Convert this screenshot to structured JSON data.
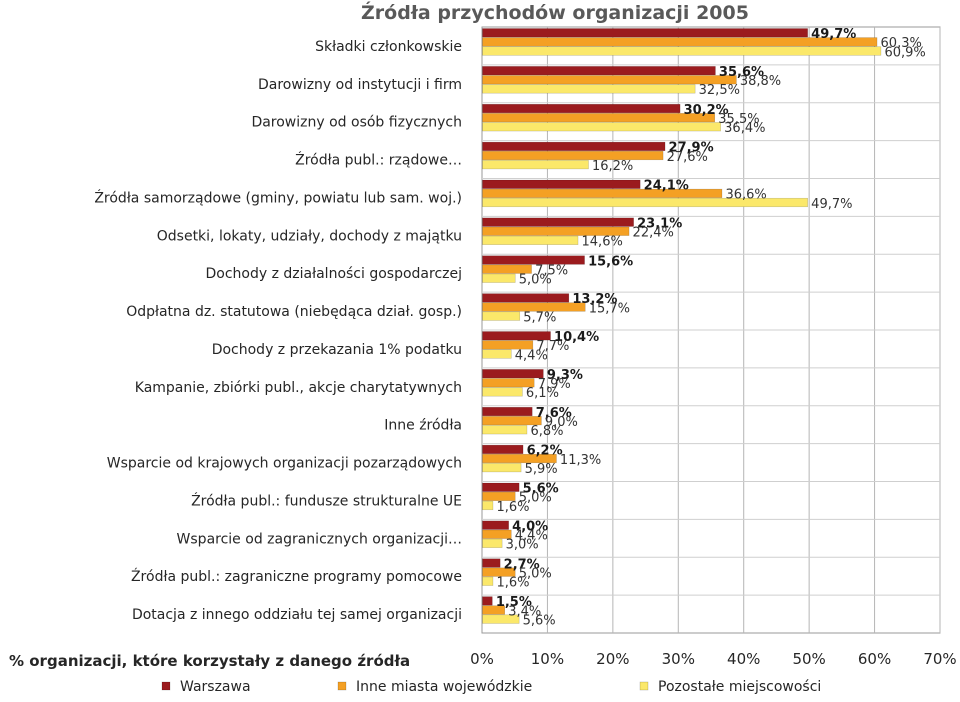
{
  "chart_data": {
    "type": "bar",
    "orientation": "horizontal",
    "title": "Źródła przychodów organizacji 2005",
    "xlabel": "% organizacji, które korzystały z danego źródła",
    "ylabel": "",
    "xlim": [
      0,
      70
    ],
    "x_ticks": [
      "0%",
      "10%",
      "20%",
      "30%",
      "40%",
      "50%",
      "60%",
      "70%"
    ],
    "grid": true,
    "legend_position": "bottom",
    "categories": [
      "Składki członkowskie",
      "Darowizny od instytucji i firm",
      "Darowizny od osób fizycznych",
      "Źródła publ.: rządowe…",
      "Źródła samorządowe (gminy, powiatu lub sam. woj.)",
      "Odsetki, lokaty, udziały, dochody z majątku",
      "Dochody z działalności gospodarczej",
      "Odpłatna dz. statutowa (niebędąca dział. gosp.)",
      "Dochody z przekazania 1% podatku",
      "Kampanie, zbiórki publ., akcje charytatywnych",
      "Inne źródła",
      "Wsparcie od krajowych organizacji pozarządowych",
      "Źródła publ.: fundusze strukturalne UE",
      "Wsparcie od zagranicznych organizacji…",
      "Źródła publ.: zagraniczne programy pomocowe",
      "Dotacja z innego oddziału tej samej organizacji"
    ],
    "series": [
      {
        "name": "Warszawa",
        "color": "#9b1b1e",
        "values": [
          49.7,
          35.6,
          30.2,
          27.9,
          24.1,
          23.1,
          15.6,
          13.2,
          10.4,
          9.3,
          7.6,
          6.2,
          5.6,
          4.0,
          2.7,
          1.5
        ],
        "labels": [
          "49,7%",
          "35,6%",
          "30,2%",
          "27,9%",
          "24,1%",
          "23,1%",
          "15,6%",
          "13,2%",
          "10,4%",
          "9,3%",
          "7,6%",
          "6,2%",
          "5,6%",
          "4,0%",
          "2,7%",
          "1,5%"
        ]
      },
      {
        "name": "Inne miasta wojewódzkie",
        "color": "#f4a024",
        "values": [
          60.3,
          38.8,
          35.5,
          27.6,
          36.6,
          22.4,
          7.5,
          15.7,
          7.7,
          7.9,
          9.0,
          11.3,
          5.0,
          4.4,
          5.0,
          3.4
        ],
        "labels": [
          "60,3%",
          "38,8%",
          "35,5%",
          "27,6%",
          "36,6%",
          "22,4%",
          "7,5%",
          "15,7%",
          "7,7%",
          "7,9%",
          "9,0%",
          "11,3%",
          "5,0%",
          "4,4%",
          "5,0%",
          "3,4%"
        ]
      },
      {
        "name": "Pozostałe miejscowości",
        "color": "#fbe86a",
        "values": [
          60.9,
          32.5,
          36.4,
          16.2,
          49.7,
          14.6,
          5.0,
          5.7,
          4.4,
          6.1,
          6.8,
          5.9,
          1.6,
          3.0,
          1.6,
          5.6
        ],
        "labels": [
          "60,9%",
          "32,5%",
          "36,4%",
          "16,2%",
          "49,7%",
          "14,6%",
          "5,0%",
          "5,7%",
          "4,4%",
          "6,1%",
          "6,8%",
          "5,9%",
          "1,6%",
          "3,0%",
          "1,6%",
          "5,6%"
        ]
      }
    ]
  }
}
